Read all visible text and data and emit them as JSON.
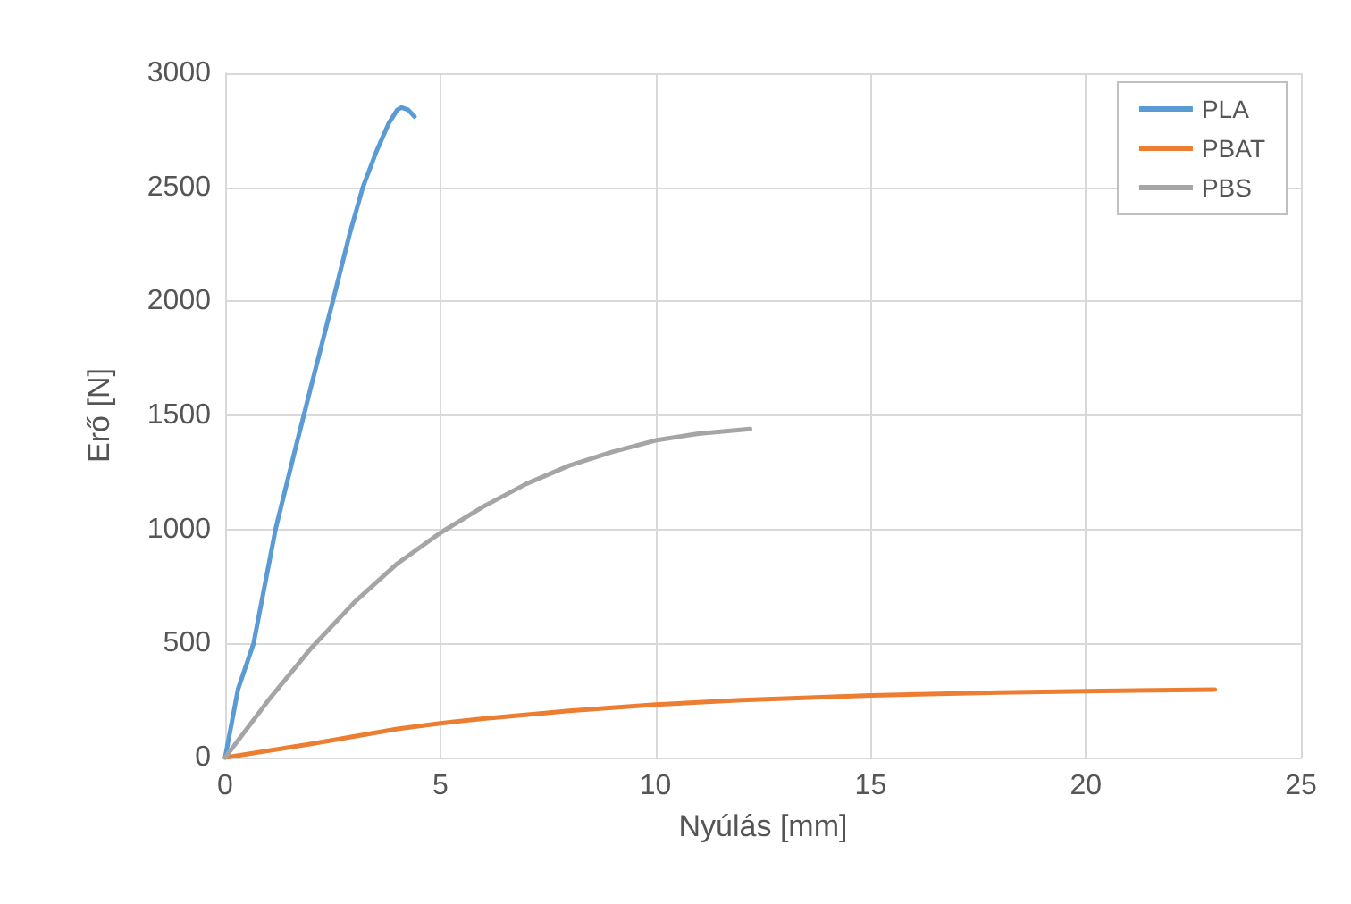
{
  "chart_data": {
    "type": "line",
    "xlabel": "Nyúlás [mm]",
    "ylabel": "Erő [N]",
    "xlim": [
      0,
      25
    ],
    "xticks": [
      0,
      5,
      10,
      15,
      20,
      25
    ],
    "ylim": [
      0,
      3000
    ],
    "yticks": [
      0,
      500,
      1000,
      1500,
      2000,
      2500,
      3000
    ],
    "grid": true,
    "legend": "top right",
    "marker": "none",
    "line_style": "solid",
    "series": [
      {
        "name": "PLA",
        "color": "#5b9bd5",
        "x": [
          0,
          0.3,
          0.66,
          1.17,
          1.6,
          2.0,
          2.5,
          2.9,
          3.2,
          3.5,
          3.8,
          4.0,
          4.1,
          4.25,
          4.4
        ],
        "values": [
          0,
          300,
          500,
          1000,
          1330,
          1630,
          2000,
          2300,
          2500,
          2650,
          2780,
          2840,
          2850,
          2840,
          2810
        ]
      },
      {
        "name": "PBAT",
        "color": "#ed7d31",
        "x": [
          0,
          2,
          4,
          5,
          6,
          8,
          10,
          12,
          15,
          18,
          20,
          23
        ],
        "values": [
          0,
          60,
          125,
          150,
          170,
          205,
          232,
          252,
          272,
          285,
          291,
          298
        ]
      },
      {
        "name": "PBS",
        "color": "#a5a5a5",
        "x": [
          0,
          1,
          2,
          3,
          4,
          5,
          6,
          7,
          8,
          9,
          10,
          11,
          12.2
        ],
        "values": [
          0,
          250,
          480,
          680,
          850,
          985,
          1100,
          1200,
          1280,
          1340,
          1390,
          1420,
          1440
        ]
      }
    ]
  }
}
